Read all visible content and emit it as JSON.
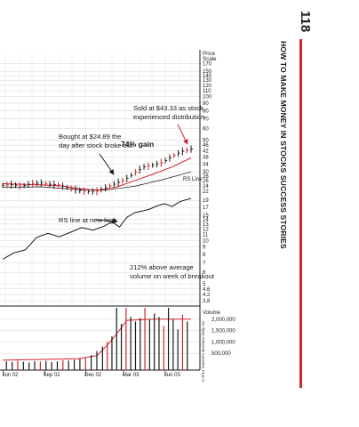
{
  "page": {
    "number": "118",
    "running_head": "HOW TO MAKE MONEY IN STOCKS SUCCESS STORIES",
    "copyright": "©2012 Investor's Business Daily, Inc."
  },
  "colors": {
    "accent": "#d2232a",
    "ink": "#1a1a1a",
    "grid": "#cfcfcf"
  },
  "chart_data": {
    "type": "line",
    "price_axis": {
      "title_line1": "Price",
      "title_line2": "Scale",
      "scale": "log",
      "ticks": [
        "170",
        "150",
        "140",
        "130",
        "120",
        "110",
        "100",
        "90",
        "80",
        "70",
        "60",
        "50",
        "46",
        "42",
        "38",
        "34",
        "30",
        "28",
        "26",
        "24",
        "22",
        "19",
        "17",
        "15",
        "14",
        "13",
        "12",
        "11",
        "10",
        "9",
        "8",
        "7",
        "6",
        "5",
        "4.6",
        "4.2",
        "3.8"
      ]
    },
    "volume_axis": {
      "title": "Volume",
      "ticks": [
        "2,000,000",
        "1,500,000",
        "1,000,000",
        "500,000"
      ],
      "max": 2500000
    },
    "time_axis": {
      "labels": [
        "Jun 02",
        "Sep 02",
        "Dec 02",
        "Mar 03",
        "Jun 03"
      ]
    },
    "price_series": [
      {
        "t": 0.0,
        "v": 24.2
      },
      {
        "t": 0.05,
        "v": 24.5
      },
      {
        "t": 0.1,
        "v": 23.8
      },
      {
        "t": 0.15,
        "v": 24.8
      },
      {
        "t": 0.2,
        "v": 25.2
      },
      {
        "t": 0.25,
        "v": 24.6
      },
      {
        "t": 0.3,
        "v": 24.3
      },
      {
        "t": 0.35,
        "v": 23.2
      },
      {
        "t": 0.4,
        "v": 22.4
      },
      {
        "t": 0.45,
        "v": 21.9
      },
      {
        "t": 0.5,
        "v": 22.0
      },
      {
        "t": 0.55,
        "v": 23.4
      },
      {
        "t": 0.6,
        "v": 24.9
      },
      {
        "t": 0.65,
        "v": 26.5
      },
      {
        "t": 0.7,
        "v": 29.5
      },
      {
        "t": 0.75,
        "v": 32.5
      },
      {
        "t": 0.8,
        "v": 33.5
      },
      {
        "t": 0.85,
        "v": 35.0
      },
      {
        "t": 0.9,
        "v": 38.5
      },
      {
        "t": 0.95,
        "v": 41.5
      },
      {
        "t": 1.0,
        "v": 43.3
      }
    ],
    "moving_average_red": [
      {
        "t": 0.0,
        "v": 24.8
      },
      {
        "t": 0.1,
        "v": 24.6
      },
      {
        "t": 0.2,
        "v": 24.4
      },
      {
        "t": 0.3,
        "v": 24.0
      },
      {
        "t": 0.4,
        "v": 23.0
      },
      {
        "t": 0.5,
        "v": 22.3
      },
      {
        "t": 0.6,
        "v": 23.4
      },
      {
        "t": 0.7,
        "v": 26.0
      },
      {
        "t": 0.8,
        "v": 29.0
      },
      {
        "t": 0.9,
        "v": 32.5
      },
      {
        "t": 1.0,
        "v": 37.5
      }
    ],
    "moving_average_black": [
      {
        "t": 0.0,
        "v": 23.4
      },
      {
        "t": 0.2,
        "v": 23.6
      },
      {
        "t": 0.4,
        "v": 22.6
      },
      {
        "t": 0.55,
        "v": 22.4
      },
      {
        "t": 0.7,
        "v": 23.8
      },
      {
        "t": 0.85,
        "v": 26.5
      },
      {
        "t": 1.0,
        "v": 30.0
      }
    ],
    "rs_line": [
      {
        "t": 0.0,
        "v": 7.4
      },
      {
        "t": 0.06,
        "v": 8.2
      },
      {
        "t": 0.12,
        "v": 8.6
      },
      {
        "t": 0.18,
        "v": 10.5
      },
      {
        "t": 0.24,
        "v": 11.2
      },
      {
        "t": 0.3,
        "v": 10.6
      },
      {
        "t": 0.36,
        "v": 11.4
      },
      {
        "t": 0.42,
        "v": 12.3
      },
      {
        "t": 0.48,
        "v": 11.8
      },
      {
        "t": 0.54,
        "v": 12.6
      },
      {
        "t": 0.58,
        "v": 13.5
      },
      {
        "t": 0.62,
        "v": 12.4
      },
      {
        "t": 0.66,
        "v": 14.5
      },
      {
        "t": 0.7,
        "v": 15.6
      },
      {
        "t": 0.74,
        "v": 16.0
      },
      {
        "t": 0.78,
        "v": 16.5
      },
      {
        "t": 0.82,
        "v": 17.4
      },
      {
        "t": 0.86,
        "v": 18.0
      },
      {
        "t": 0.9,
        "v": 17.2
      },
      {
        "t": 0.94,
        "v": 18.6
      },
      {
        "t": 0.98,
        "v": 19.3
      },
      {
        "t": 1.0,
        "v": 19.6
      }
    ],
    "rs_label": "RS Line",
    "volume_bars": [
      {
        "t": 0.02,
        "v": 150000
      },
      {
        "t": 0.05,
        "v": 120000
      },
      {
        "t": 0.08,
        "v": 180000
      },
      {
        "t": 0.11,
        "v": 130000
      },
      {
        "t": 0.14,
        "v": 100000
      },
      {
        "t": 0.17,
        "v": 160000
      },
      {
        "t": 0.2,
        "v": 140000
      },
      {
        "t": 0.23,
        "v": 170000
      },
      {
        "t": 0.26,
        "v": 120000
      },
      {
        "t": 0.29,
        "v": 150000
      },
      {
        "t": 0.32,
        "v": 200000
      },
      {
        "t": 0.35,
        "v": 180000
      },
      {
        "t": 0.38,
        "v": 220000
      },
      {
        "t": 0.41,
        "v": 260000
      },
      {
        "t": 0.44,
        "v": 300000
      },
      {
        "t": 0.47,
        "v": 420000
      },
      {
        "t": 0.5,
        "v": 600000
      },
      {
        "t": 0.53,
        "v": 800000
      },
      {
        "t": 0.555,
        "v": 1000000
      },
      {
        "t": 0.58,
        "v": 1250000
      },
      {
        "t": 0.605,
        "v": 2500000
      },
      {
        "t": 0.63,
        "v": 1800000
      },
      {
        "t": 0.655,
        "v": 2500000
      },
      {
        "t": 0.68,
        "v": 2100000
      },
      {
        "t": 0.705,
        "v": 1900000
      },
      {
        "t": 0.73,
        "v": 2050000
      },
      {
        "t": 0.755,
        "v": 2500000
      },
      {
        "t": 0.78,
        "v": 2000000
      },
      {
        "t": 0.805,
        "v": 2250000
      },
      {
        "t": 0.83,
        "v": 2100000
      },
      {
        "t": 0.855,
        "v": 1700000
      },
      {
        "t": 0.88,
        "v": 2500000
      },
      {
        "t": 0.905,
        "v": 2000000
      },
      {
        "t": 0.93,
        "v": 1550000
      },
      {
        "t": 0.955,
        "v": 2200000
      },
      {
        "t": 0.98,
        "v": 1900000
      }
    ],
    "volume_average": [
      {
        "t": 0.0,
        "v": 200000
      },
      {
        "t": 0.4,
        "v": 260000
      },
      {
        "t": 0.5,
        "v": 400000
      },
      {
        "t": 0.56,
        "v": 900000
      },
      {
        "t": 0.6,
        "v": 1300000
      },
      {
        "t": 0.66,
        "v": 1950000
      },
      {
        "t": 0.8,
        "v": 2000000
      },
      {
        "t": 1.0,
        "v": 2000000
      }
    ],
    "annotations": {
      "sold_line1": "Sold at $43.33 as stock",
      "sold_line2": "experienced distribution",
      "bought_line1": "Bought at $24.89 the",
      "bought_line2": "day after stock broke out",
      "gain": "74% gain",
      "rs_high": "RS line at new high",
      "volume_line1": "212% above average",
      "volume_line2": "volume on week of breakout"
    }
  }
}
